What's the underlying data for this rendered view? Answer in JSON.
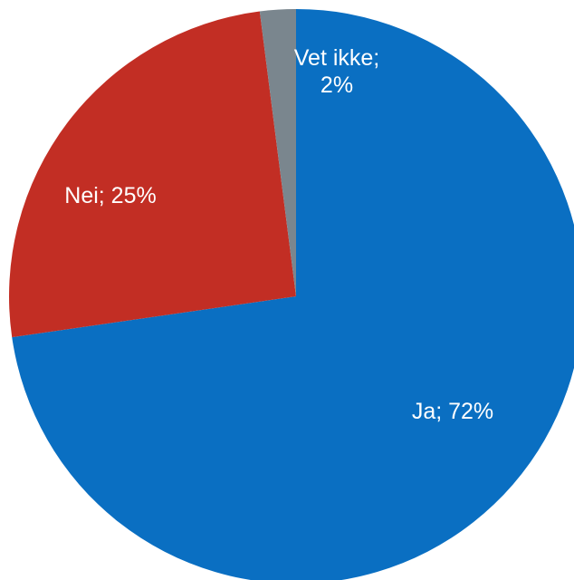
{
  "chart_data": {
    "type": "pie",
    "slices": [
      {
        "label": "Ja",
        "value": 72,
        "text": "Ja; 72%",
        "color": "#0a6fc2"
      },
      {
        "label": "Nei",
        "value": 25,
        "text": "Nei; 25%",
        "color": "#c22e24"
      },
      {
        "label": "Vet ikke",
        "value": 2,
        "text": "Vet ikke;\n2%",
        "color": "#7a868e"
      }
    ],
    "start": "12 o'clock",
    "direction": "clockwise",
    "legend": "none"
  }
}
